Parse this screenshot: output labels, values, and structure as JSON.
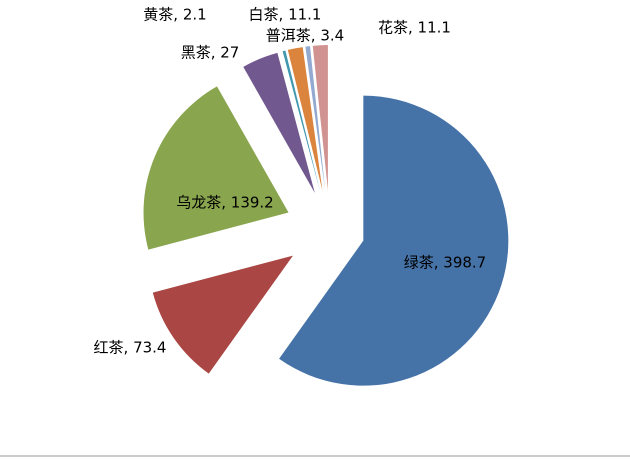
{
  "chart_data": {
    "type": "pie",
    "categories": [
      "绿茶",
      "红茶",
      "乌龙茶",
      "黑茶",
      "黄茶",
      "白茶",
      "普洱茶",
      "花茶"
    ],
    "values": [
      398.7,
      73.4,
      139.2,
      27,
      2.1,
      11.1,
      3.4,
      11.1
    ],
    "value_labels": [
      "绿茶, 398.7",
      "红茶, 73.4",
      "乌龙茶, 139.2",
      "黑茶, 27",
      "黄茶, 2.1",
      "白茶, 11.1",
      "普洱茶, 3.4",
      "花茶, 11.1"
    ],
    "colors": [
      "#4572a7",
      "#aa4643",
      "#89a54e",
      "#71588f",
      "#4198af",
      "#db843d",
      "#93a9cf",
      "#d19392"
    ]
  }
}
